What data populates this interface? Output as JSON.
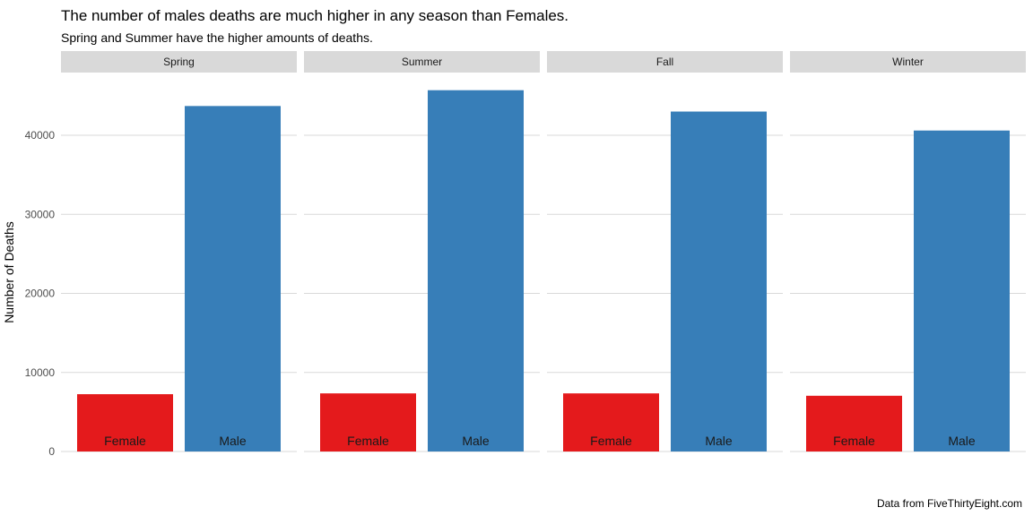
{
  "chart_data": {
    "type": "bar",
    "title": "The number of males deaths are much higher in any season than Females.",
    "subtitle": "Spring and Summer have the higher amounts of deaths.",
    "ylabel": "Number of Deaths",
    "caption": "Data from FiveThirtyEight.com",
    "ylim": [
      0,
      46000
    ],
    "yticks": [
      0,
      10000,
      20000,
      30000,
      40000
    ],
    "ytick_labels": [
      "0",
      "10000",
      "20000",
      "30000",
      "40000"
    ],
    "categories": [
      "Female",
      "Male"
    ],
    "colors": {
      "Female": "#E41A1C",
      "Male": "#377EB8"
    },
    "grid": true,
    "legend": "none",
    "facets": [
      {
        "label": "Spring",
        "values": [
          7250,
          43700
        ]
      },
      {
        "label": "Summer",
        "values": [
          7350,
          45700
        ]
      },
      {
        "label": "Fall",
        "values": [
          7350,
          43000
        ]
      },
      {
        "label": "Winter",
        "values": [
          7050,
          40600
        ]
      }
    ]
  }
}
